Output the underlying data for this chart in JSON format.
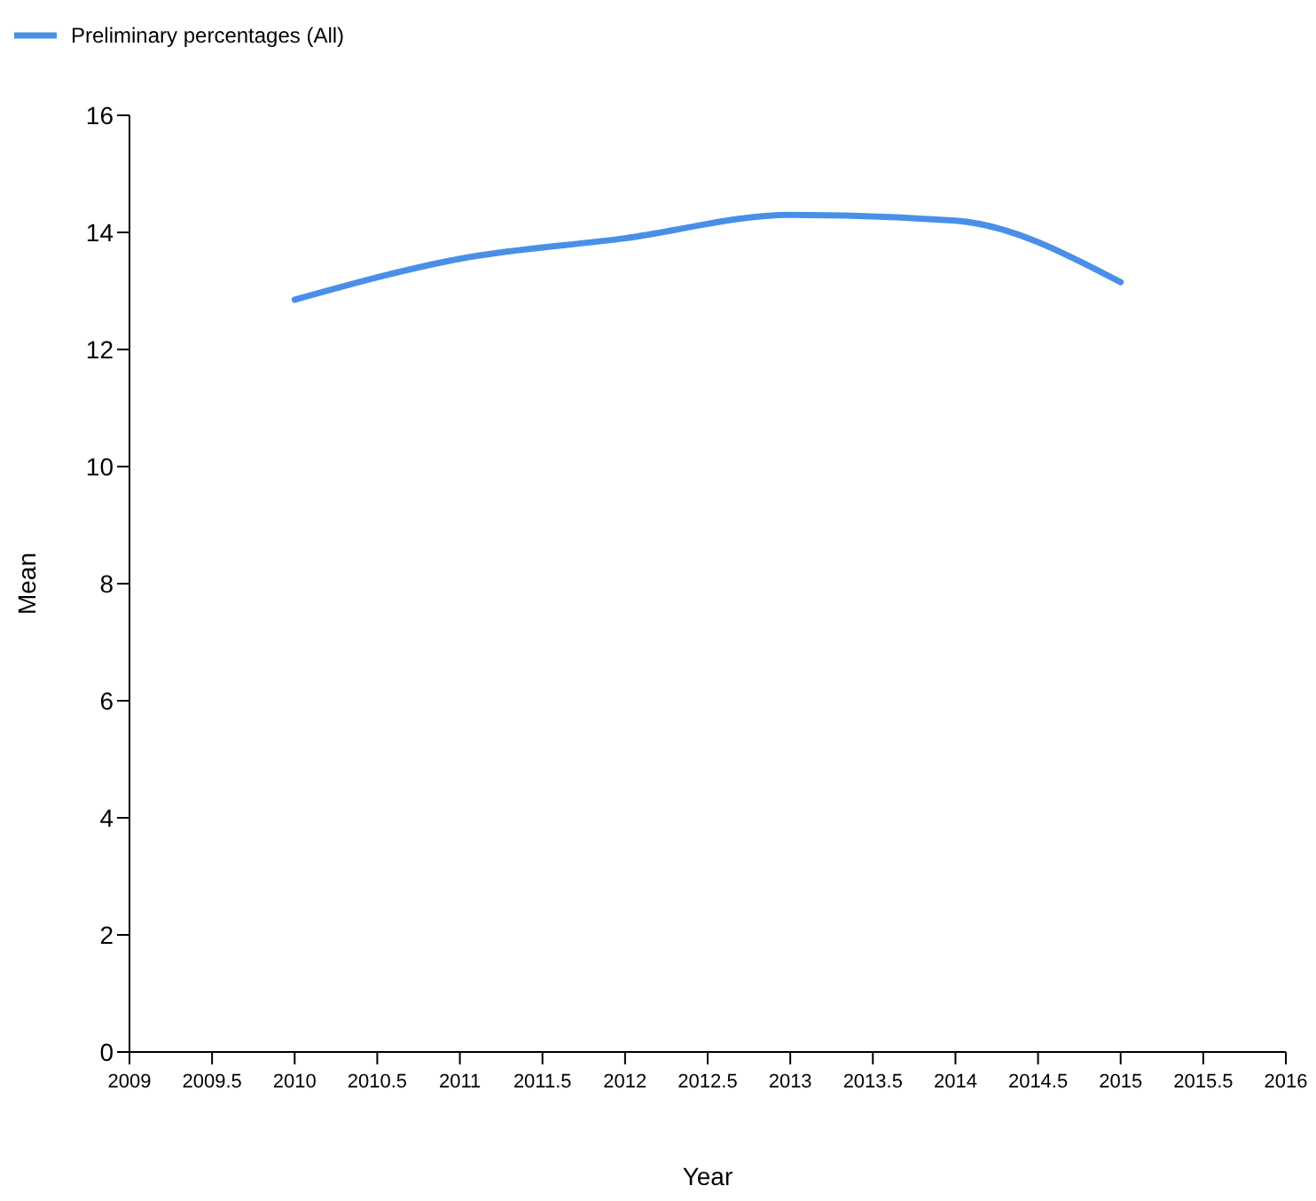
{
  "chart_data": {
    "type": "line",
    "xlabel": "Year",
    "ylabel": "Mean",
    "x": [
      2010,
      2011,
      2012,
      2013,
      2014,
      2015
    ],
    "series": [
      {
        "name": "Preliminary percentages (All)",
        "color": "#4a8fe7",
        "values": [
          12.85,
          13.55,
          13.9,
          14.3,
          14.2,
          13.15
        ]
      }
    ],
    "xlim": [
      2009,
      2016
    ],
    "xticks": [
      2009,
      2009.5,
      2010,
      2010.5,
      2011,
      2011.5,
      2012,
      2012.5,
      2013,
      2013.5,
      2014,
      2014.5,
      2015,
      2015.5,
      2016
    ],
    "ylim": [
      0,
      16
    ],
    "yticks": [
      0,
      2,
      4,
      6,
      8,
      10,
      12,
      14,
      16
    ],
    "grid": false,
    "legend": "top left",
    "marker": "none",
    "line_style": "solid"
  }
}
